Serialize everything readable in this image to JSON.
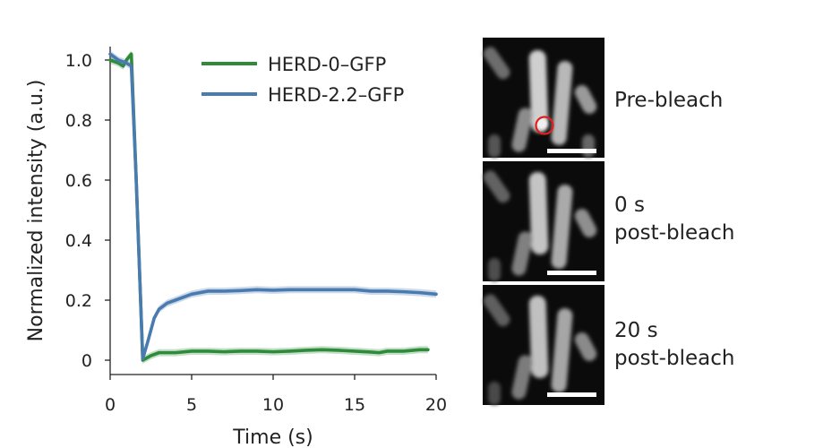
{
  "chart_data": {
    "type": "line",
    "xlabel": "Time (s)",
    "ylabel": "Normalized intensity (a.u.)",
    "xlim": [
      0,
      20
    ],
    "ylim": [
      0,
      1.05
    ],
    "x_ticks": [
      0,
      5,
      10,
      15,
      20
    ],
    "x_tick_labels": [
      "0",
      "5",
      "10",
      "15",
      "20"
    ],
    "y_ticks": [
      0,
      0.2,
      0.4,
      0.6,
      0.8,
      1.0
    ],
    "y_tick_labels": [
      "0",
      "0.2",
      "0.4",
      "0.6",
      "0.8",
      "1.0"
    ],
    "grid": false,
    "legend_position": "top-right",
    "series": [
      {
        "name": "HERD-0–GFP",
        "color": "#2e8b3a",
        "x": [
          0,
          0.5,
          0.8,
          1.0,
          1.3,
          1.6,
          2.0,
          2.5,
          3.0,
          3.5,
          4.0,
          5.0,
          6.0,
          7.0,
          8.0,
          9.0,
          10.0,
          11.0,
          12.0,
          13.0,
          14.0,
          15.0,
          16.0,
          16.5,
          17.0,
          18.0,
          19.0,
          19.5
        ],
        "y": [
          1.0,
          0.99,
          0.98,
          1.0,
          1.02,
          0.6,
          0.0,
          0.015,
          0.025,
          0.025,
          0.025,
          0.03,
          0.03,
          0.028,
          0.03,
          0.03,
          0.028,
          0.03,
          0.033,
          0.035,
          0.033,
          0.03,
          0.027,
          0.025,
          0.03,
          0.03,
          0.035,
          0.035
        ]
      },
      {
        "name": "HERD-2.2–GFP",
        "color": "#4a7bb0",
        "x": [
          0,
          0.5,
          1.0,
          1.3,
          1.6,
          2.0,
          2.3,
          2.7,
          3.0,
          3.5,
          4.0,
          5.0,
          6.0,
          7.0,
          8.0,
          9.0,
          10.0,
          11.0,
          12.0,
          13.0,
          14.0,
          15.0,
          16.0,
          17.0,
          18.0,
          19.0,
          20.0
        ],
        "y": [
          1.02,
          1.0,
          0.99,
          0.98,
          0.6,
          0.005,
          0.06,
          0.14,
          0.17,
          0.19,
          0.2,
          0.22,
          0.23,
          0.23,
          0.232,
          0.235,
          0.233,
          0.235,
          0.235,
          0.235,
          0.235,
          0.235,
          0.23,
          0.23,
          0.228,
          0.225,
          0.22
        ]
      }
    ]
  },
  "images": {
    "labels": [
      "Pre-bleach",
      "0 s\npost-bleach",
      "20 s\npost-bleach"
    ],
    "marker_color": "#e02020",
    "scale_bar_color": "#ffffff"
  }
}
